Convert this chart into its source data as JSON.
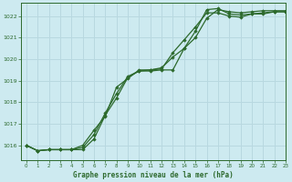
{
  "title": "Graphe pression niveau de la mer (hPa)",
  "bg_color": "#cdeaf0",
  "grid_color": "#b8d8e0",
  "line_color": "#2d6a2d",
  "marker_color": "#2d6a2d",
  "xlim": [
    -0.5,
    23
  ],
  "ylim": [
    1015.3,
    1022.6
  ],
  "yticks": [
    1016,
    1017,
    1018,
    1019,
    1020,
    1021,
    1022
  ],
  "xticks": [
    0,
    1,
    2,
    3,
    4,
    5,
    6,
    7,
    8,
    9,
    10,
    11,
    12,
    13,
    14,
    15,
    16,
    17,
    18,
    19,
    20,
    21,
    22,
    23
  ],
  "series": [
    [
      1016.0,
      1015.75,
      1015.8,
      1015.8,
      1015.8,
      1015.8,
      1016.3,
      1017.4,
      1018.2,
      1019.15,
      1019.45,
      1019.45,
      1019.5,
      1019.5,
      1020.5,
      1021.0,
      1021.9,
      1022.3,
      1022.2,
      1022.15,
      1022.2,
      1022.25,
      1022.25,
      1022.25
    ],
    [
      1016.0,
      1015.75,
      1015.8,
      1015.8,
      1015.8,
      1015.9,
      1016.5,
      1017.5,
      1018.4,
      1019.2,
      1019.45,
      1019.5,
      1019.55,
      1020.3,
      1020.9,
      1021.5,
      1022.15,
      1022.15,
      1022.0,
      1021.95,
      1022.1,
      1022.1,
      1022.2,
      1022.2
    ],
    [
      1016.0,
      1015.75,
      1015.8,
      1015.8,
      1015.8,
      1016.0,
      1016.7,
      1017.35,
      1018.7,
      1019.1,
      1019.5,
      1019.5,
      1019.6,
      1020.1,
      1020.5,
      1021.3,
      1022.3,
      1022.35,
      1022.1,
      1022.05,
      1022.1,
      1022.15,
      1022.2,
      1022.2
    ]
  ],
  "figsize": [
    3.2,
    2.0
  ],
  "dpi": 100
}
